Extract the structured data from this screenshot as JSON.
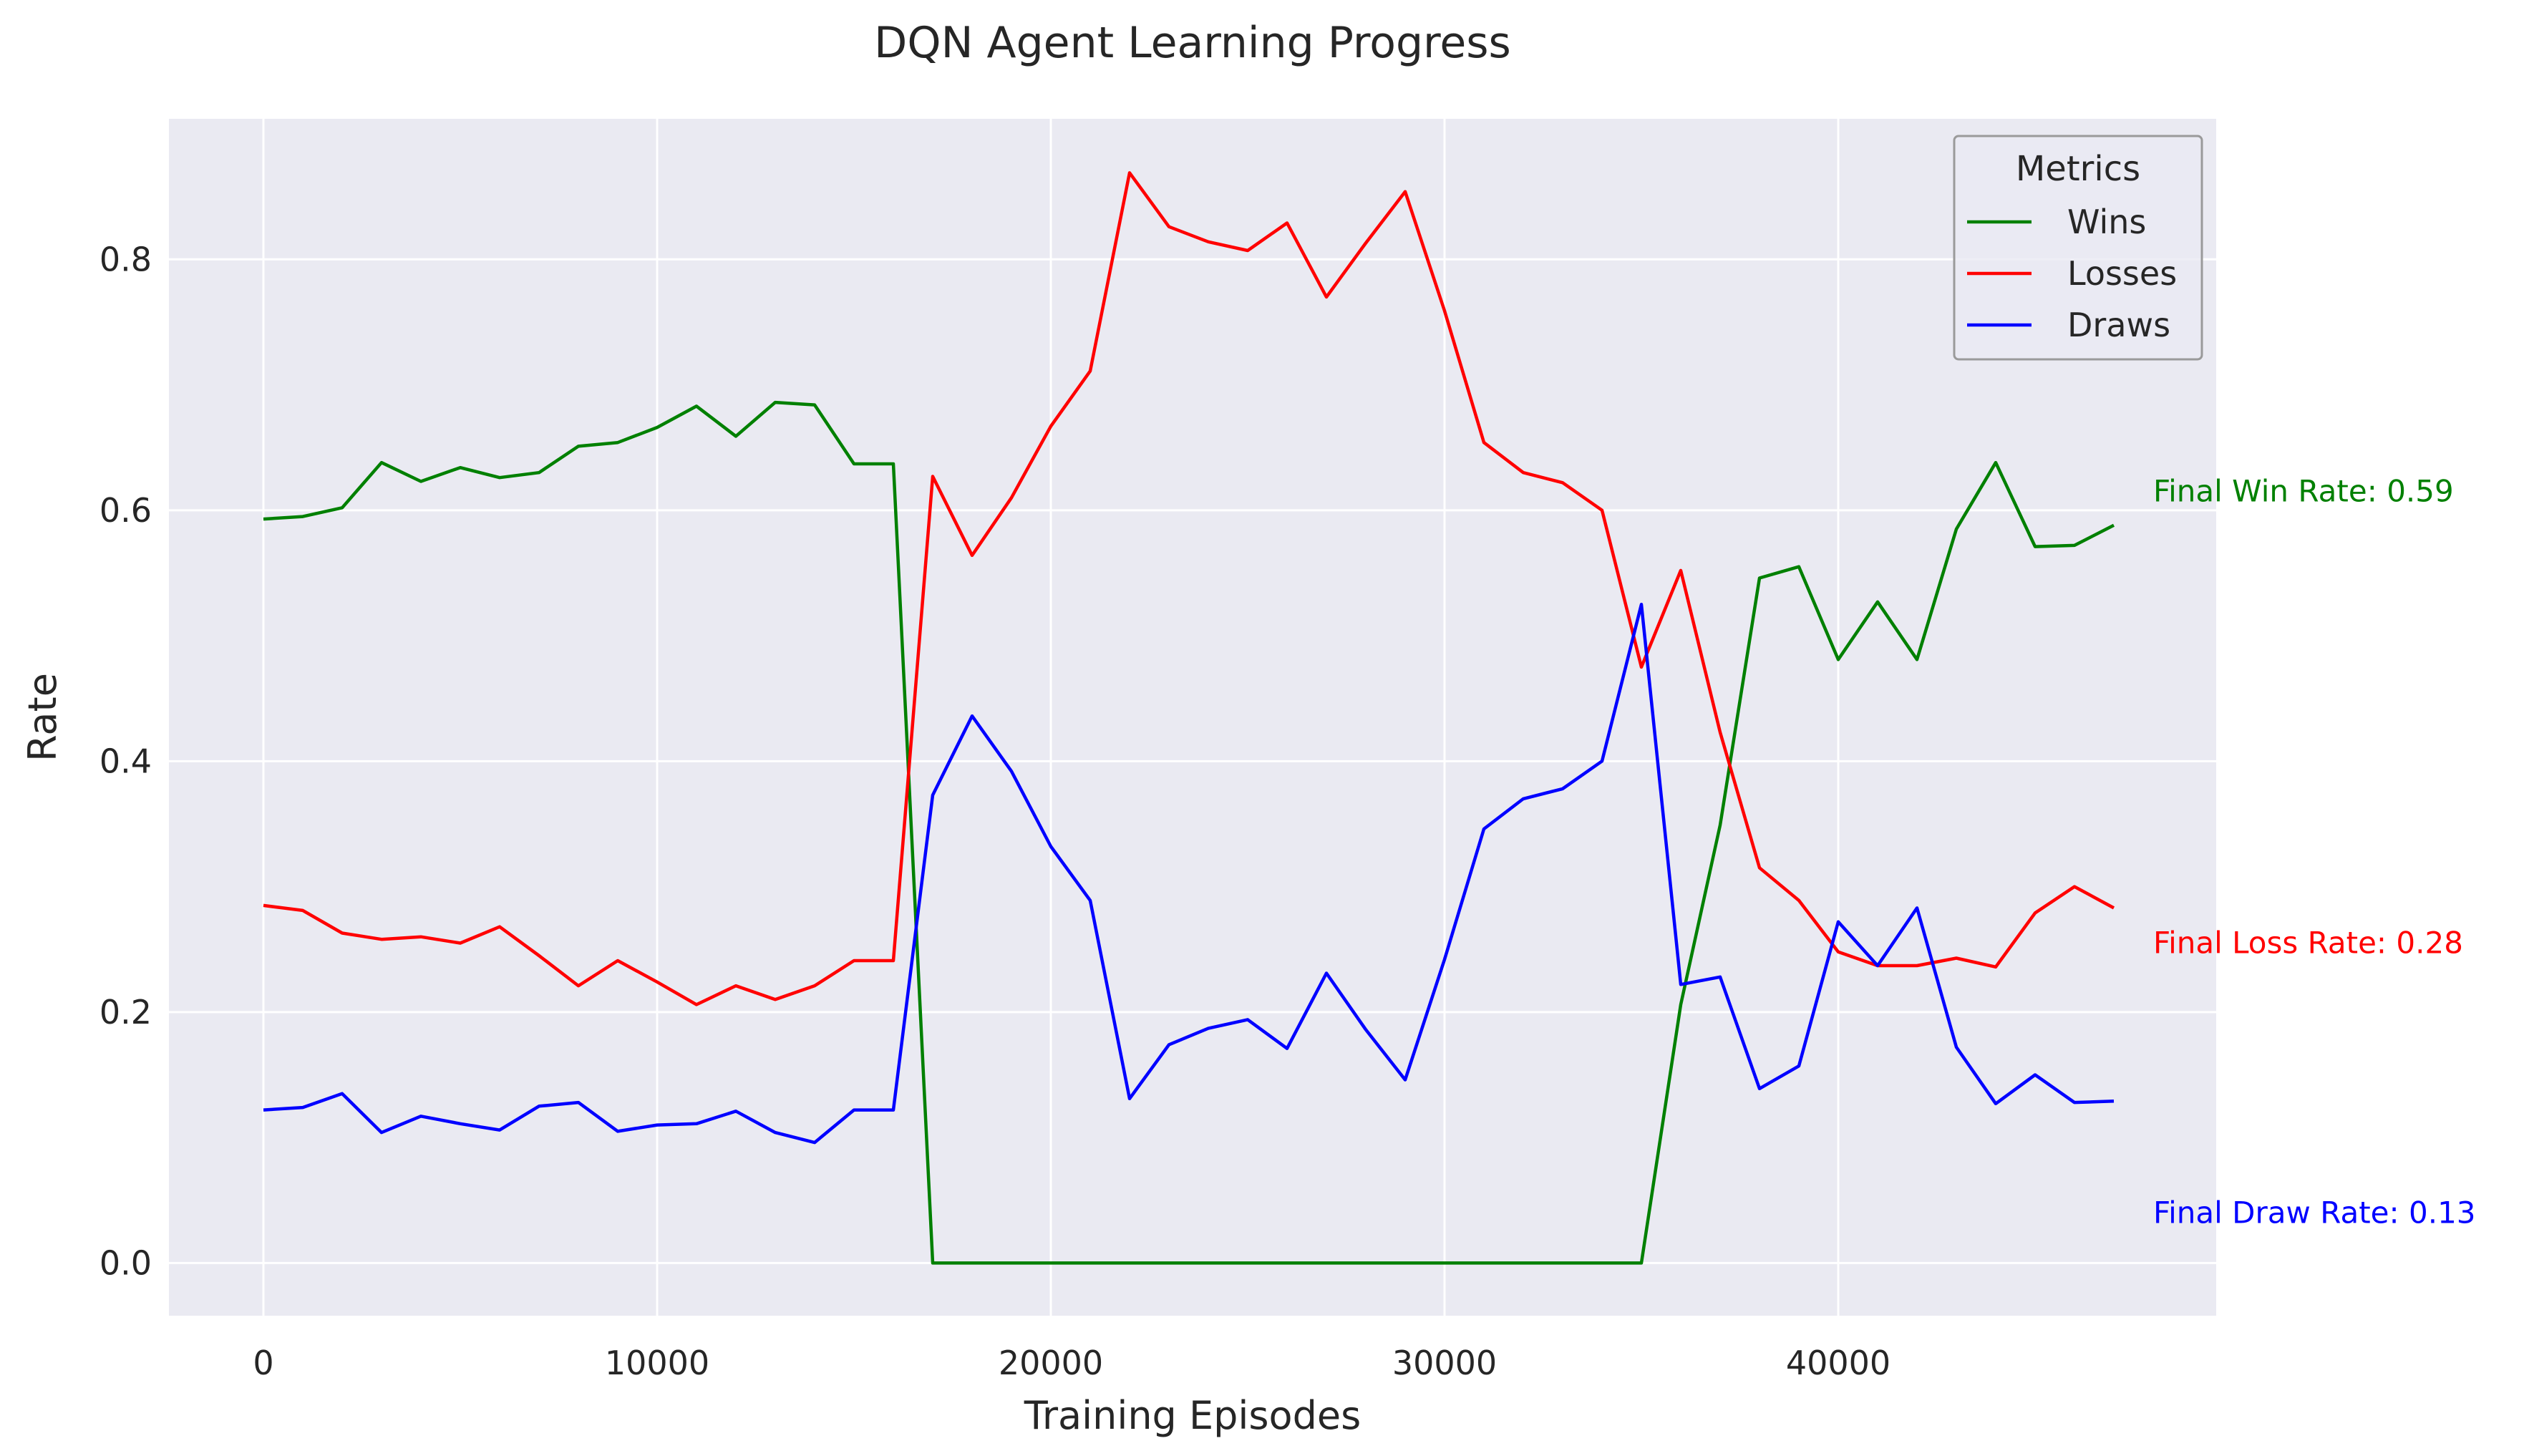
{
  "chart_data": {
    "type": "line",
    "title": "DQN Agent Learning Progress",
    "xlabel": "Training Episodes",
    "ylabel": "Rate",
    "xlim": [
      -2400,
      49600
    ],
    "ylim": [
      -0.042,
      0.912
    ],
    "grid": true,
    "background": "#eaeaf2",
    "xticks": [
      0,
      10000,
      20000,
      30000,
      40000
    ],
    "xtick_labels": [
      "0",
      "10000",
      "20000",
      "30000",
      "40000"
    ],
    "yticks": [
      0.0,
      0.2,
      0.4,
      0.6,
      0.8
    ],
    "ytick_labels": [
      "0.0",
      "0.2",
      "0.4",
      "0.6",
      "0.8"
    ],
    "x": [
      0,
      1000,
      2000,
      3000,
      4000,
      5000,
      6000,
      7000,
      8000,
      9000,
      10000,
      11000,
      12000,
      13000,
      14000,
      15000,
      16000,
      17000,
      18000,
      19000,
      20000,
      21000,
      22000,
      23000,
      24000,
      25000,
      26000,
      27000,
      28000,
      29000,
      30000,
      31000,
      32000,
      33000,
      34000,
      35000,
      36000,
      37000,
      38000,
      39000,
      40000,
      41000,
      42000,
      43000,
      44000,
      45000,
      46000,
      47000
    ],
    "legend": {
      "title": "Metrics",
      "position": "top-right"
    },
    "series": [
      {
        "name": "Wins",
        "color": "#008000",
        "values": [
          0.593,
          0.595,
          0.602,
          0.638,
          0.623,
          0.634,
          0.626,
          0.63,
          0.651,
          0.654,
          0.666,
          0.683,
          0.659,
          0.686,
          0.684,
          0.637,
          0.637,
          0.0,
          0.0,
          0.0,
          0.0,
          0.0,
          0.0,
          0.0,
          0.0,
          0.0,
          0.0,
          0.0,
          0.0,
          0.0,
          0.0,
          0.0,
          0.0,
          0.0,
          0.0,
          0.0,
          0.206,
          0.349,
          0.546,
          0.555,
          0.481,
          0.527,
          0.481,
          0.585,
          0.638,
          0.571,
          0.572,
          0.588
        ]
      },
      {
        "name": "Losses",
        "color": "#ff0000",
        "values": [
          0.285,
          0.281,
          0.263,
          0.258,
          0.26,
          0.255,
          0.268,
          0.245,
          0.221,
          0.241,
          0.224,
          0.206,
          0.221,
          0.21,
          0.221,
          0.241,
          0.241,
          0.627,
          0.564,
          0.61,
          0.667,
          0.711,
          0.869,
          0.826,
          0.814,
          0.807,
          0.829,
          0.77,
          0.813,
          0.854,
          0.759,
          0.654,
          0.63,
          0.622,
          0.6,
          0.475,
          0.552,
          0.423,
          0.315,
          0.289,
          0.248,
          0.237,
          0.237,
          0.243,
          0.236,
          0.279,
          0.3,
          0.283
        ]
      },
      {
        "name": "Draws",
        "color": "#0000ff",
        "values": [
          0.122,
          0.124,
          0.135,
          0.104,
          0.117,
          0.111,
          0.106,
          0.125,
          0.128,
          0.105,
          0.11,
          0.111,
          0.121,
          0.104,
          0.096,
          0.122,
          0.122,
          0.373,
          0.436,
          0.392,
          0.332,
          0.289,
          0.131,
          0.174,
          0.187,
          0.194,
          0.171,
          0.231,
          0.186,
          0.146,
          0.242,
          0.346,
          0.37,
          0.378,
          0.4,
          0.525,
          0.222,
          0.228,
          0.139,
          0.157,
          0.272,
          0.237,
          0.283,
          0.172,
          0.127,
          0.15,
          0.128,
          0.129
        ]
      }
    ],
    "annotations": [
      {
        "text": "Final Win Rate: 0.59",
        "color": "#008000",
        "x": 48000,
        "y": 0.615
      },
      {
        "text": "Final Loss Rate: 0.28",
        "color": "#ff0000",
        "x": 48000,
        "y": 0.255
      },
      {
        "text": "Final Draw Rate: 0.13",
        "color": "#0000ff",
        "x": 48000,
        "y": 0.04
      }
    ]
  }
}
